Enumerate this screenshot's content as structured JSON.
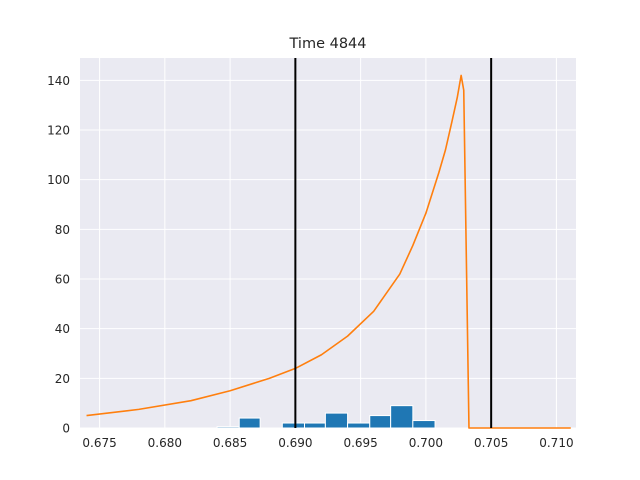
{
  "chart_data": {
    "type": "bar",
    "title": "Time 4844",
    "xlabel": "",
    "ylabel": "",
    "xlim": [
      0.6735,
      0.7115
    ],
    "ylim": [
      0,
      149
    ],
    "grid": true,
    "x_ticks": [
      0.675,
      0.68,
      0.685,
      0.69,
      0.695,
      0.7,
      0.705,
      0.71
    ],
    "x_tick_labels": [
      "0.675",
      "0.680",
      "0.685",
      "0.690",
      "0.695",
      "0.700",
      "0.705",
      "0.710"
    ],
    "y_ticks": [
      0,
      20,
      40,
      60,
      80,
      100,
      120,
      140
    ],
    "y_tick_labels": [
      "0",
      "20",
      "40",
      "60",
      "80",
      "100",
      "120",
      "140"
    ],
    "histogram": {
      "color": "#1f77b4",
      "bins": [
        {
          "x0": 0.684,
          "x1": 0.6857,
          "count": 0.5
        },
        {
          "x0": 0.6857,
          "x1": 0.6873,
          "count": 4
        },
        {
          "x0": 0.689,
          "x1": 0.6907,
          "count": 2
        },
        {
          "x0": 0.6907,
          "x1": 0.6923,
          "count": 2
        },
        {
          "x0": 0.6923,
          "x1": 0.694,
          "count": 6
        },
        {
          "x0": 0.694,
          "x1": 0.6957,
          "count": 2
        },
        {
          "x0": 0.6957,
          "x1": 0.6973,
          "count": 5
        },
        {
          "x0": 0.6973,
          "x1": 0.699,
          "count": 9
        },
        {
          "x0": 0.699,
          "x1": 0.7007,
          "count": 3
        }
      ]
    },
    "curve": {
      "color": "#ff7f0e",
      "x": [
        0.674,
        0.678,
        0.682,
        0.685,
        0.688,
        0.69,
        0.692,
        0.694,
        0.696,
        0.698,
        0.699,
        0.7,
        0.701,
        0.7015,
        0.702,
        0.7024,
        0.7027,
        0.7029,
        0.7033,
        0.704,
        0.7111
      ],
      "y": [
        5,
        7.5,
        11,
        15,
        20,
        24,
        29.5,
        37,
        47,
        62,
        73.5,
        86.5,
        103,
        112,
        123.5,
        133,
        142,
        136,
        0,
        0,
        0
      ]
    },
    "vlines": {
      "color": "#000000",
      "x": [
        0.69,
        0.705
      ]
    }
  }
}
